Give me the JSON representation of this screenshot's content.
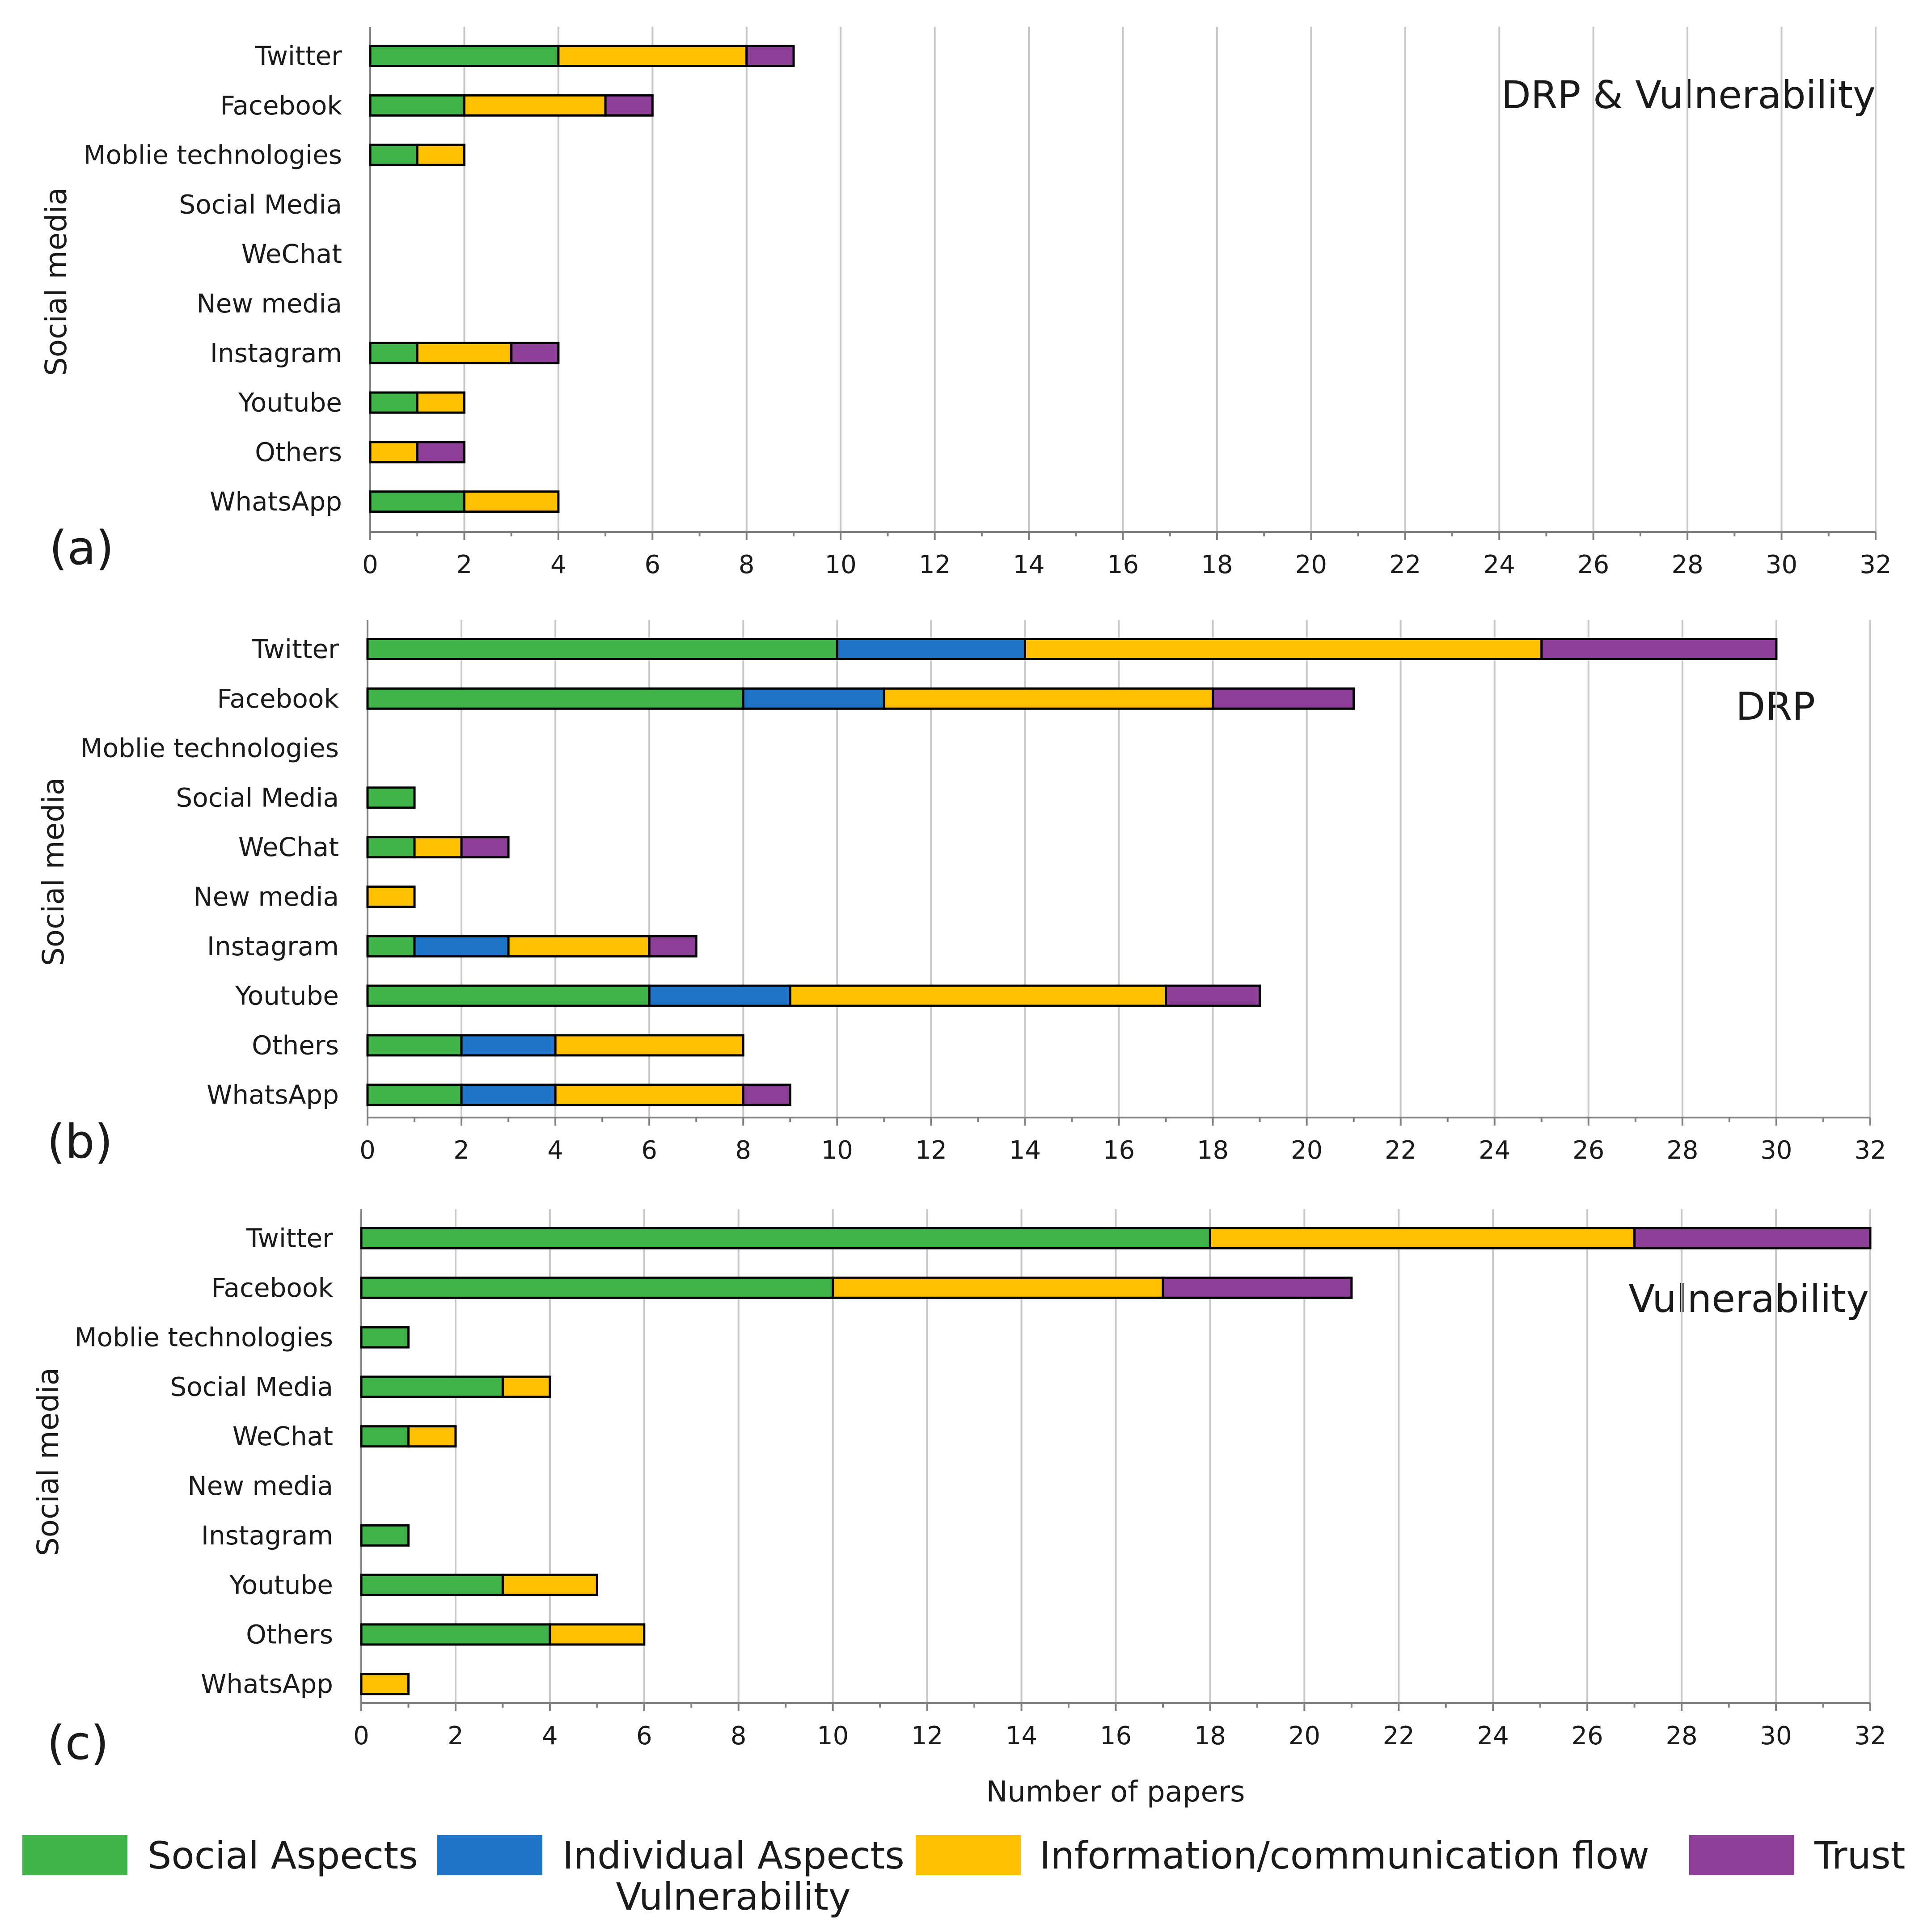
{
  "chart_data": {
    "type": "bar",
    "orientation": "horizontal",
    "stacked": true,
    "categories": [
      "Twitter",
      "Facebook",
      "Moblie technologies",
      "Social Media",
      "WeChat",
      "New media",
      "Instagram",
      "Youtube",
      "Others",
      "WhatsApp"
    ],
    "xlim": [
      0,
      32
    ],
    "xticks": [
      "0",
      "2",
      "4",
      "6",
      "8",
      "10",
      "12",
      "14",
      "16",
      "18",
      "20",
      "22",
      "24",
      "26",
      "28",
      "30",
      "32"
    ],
    "xlabel": "Number of papers",
    "ylabel": "Social media",
    "grid": true,
    "legend_position": "bottom",
    "legend": {
      "items": [
        {
          "key": "social",
          "label": "Social Aspects",
          "color": "#3fb348"
        },
        {
          "key": "individual",
          "label": "Individual Aspects",
          "color": "#1f74c8"
        },
        {
          "key": "info",
          "label": "Information/communication flow",
          "color": "#ffc000"
        },
        {
          "key": "trust",
          "label": "Trust",
          "color": "#8d3e96"
        }
      ],
      "subtitle": "Vulnerability"
    },
    "panels": [
      {
        "letter": "(a)",
        "title": "DRP & Vulnerability",
        "series": [
          {
            "key": "social",
            "name": "Social Aspects",
            "values": [
              4,
              2,
              1,
              0,
              0,
              0,
              1,
              1,
              0,
              2
            ]
          },
          {
            "key": "individual",
            "name": "Individual Aspects",
            "values": [
              0,
              0,
              0,
              0,
              0,
              0,
              0,
              0,
              0,
              0
            ]
          },
          {
            "key": "info",
            "name": "Information/communication flow",
            "values": [
              4,
              3,
              1,
              0,
              0,
              0,
              2,
              1,
              1,
              2
            ]
          },
          {
            "key": "trust",
            "name": "Trust",
            "values": [
              1,
              1,
              0,
              0,
              0,
              0,
              1,
              0,
              1,
              0
            ]
          }
        ]
      },
      {
        "letter": "(b)",
        "title": "DRP",
        "series": [
          {
            "key": "social",
            "name": "Social Aspects",
            "values": [
              10,
              8,
              0,
              1,
              1,
              0,
              1,
              6,
              2,
              2
            ]
          },
          {
            "key": "individual",
            "name": "Individual Aspects",
            "values": [
              4,
              3,
              0,
              0,
              0,
              0,
              2,
              3,
              2,
              2
            ]
          },
          {
            "key": "info",
            "name": "Information/communication flow",
            "values": [
              11,
              7,
              0,
              0,
              1,
              1,
              3,
              8,
              4,
              4
            ]
          },
          {
            "key": "trust",
            "name": "Trust",
            "values": [
              5,
              3,
              0,
              0,
              1,
              0,
              1,
              2,
              0,
              1
            ]
          }
        ]
      },
      {
        "letter": "(c)",
        "title": "Vulnerability",
        "series": [
          {
            "key": "social",
            "name": "Social Aspects",
            "values": [
              18,
              10,
              1,
              3,
              1,
              0,
              1,
              3,
              4,
              0
            ]
          },
          {
            "key": "individual",
            "name": "Individual Aspects",
            "values": [
              0,
              0,
              0,
              0,
              0,
              0,
              0,
              0,
              0,
              0
            ]
          },
          {
            "key": "info",
            "name": "Information/communication flow",
            "values": [
              9,
              7,
              0,
              1,
              1,
              0,
              0,
              2,
              2,
              1
            ]
          },
          {
            "key": "trust",
            "name": "Trust",
            "values": [
              5,
              4,
              0,
              0,
              0,
              0,
              0,
              0,
              0,
              0
            ]
          }
        ]
      }
    ]
  }
}
